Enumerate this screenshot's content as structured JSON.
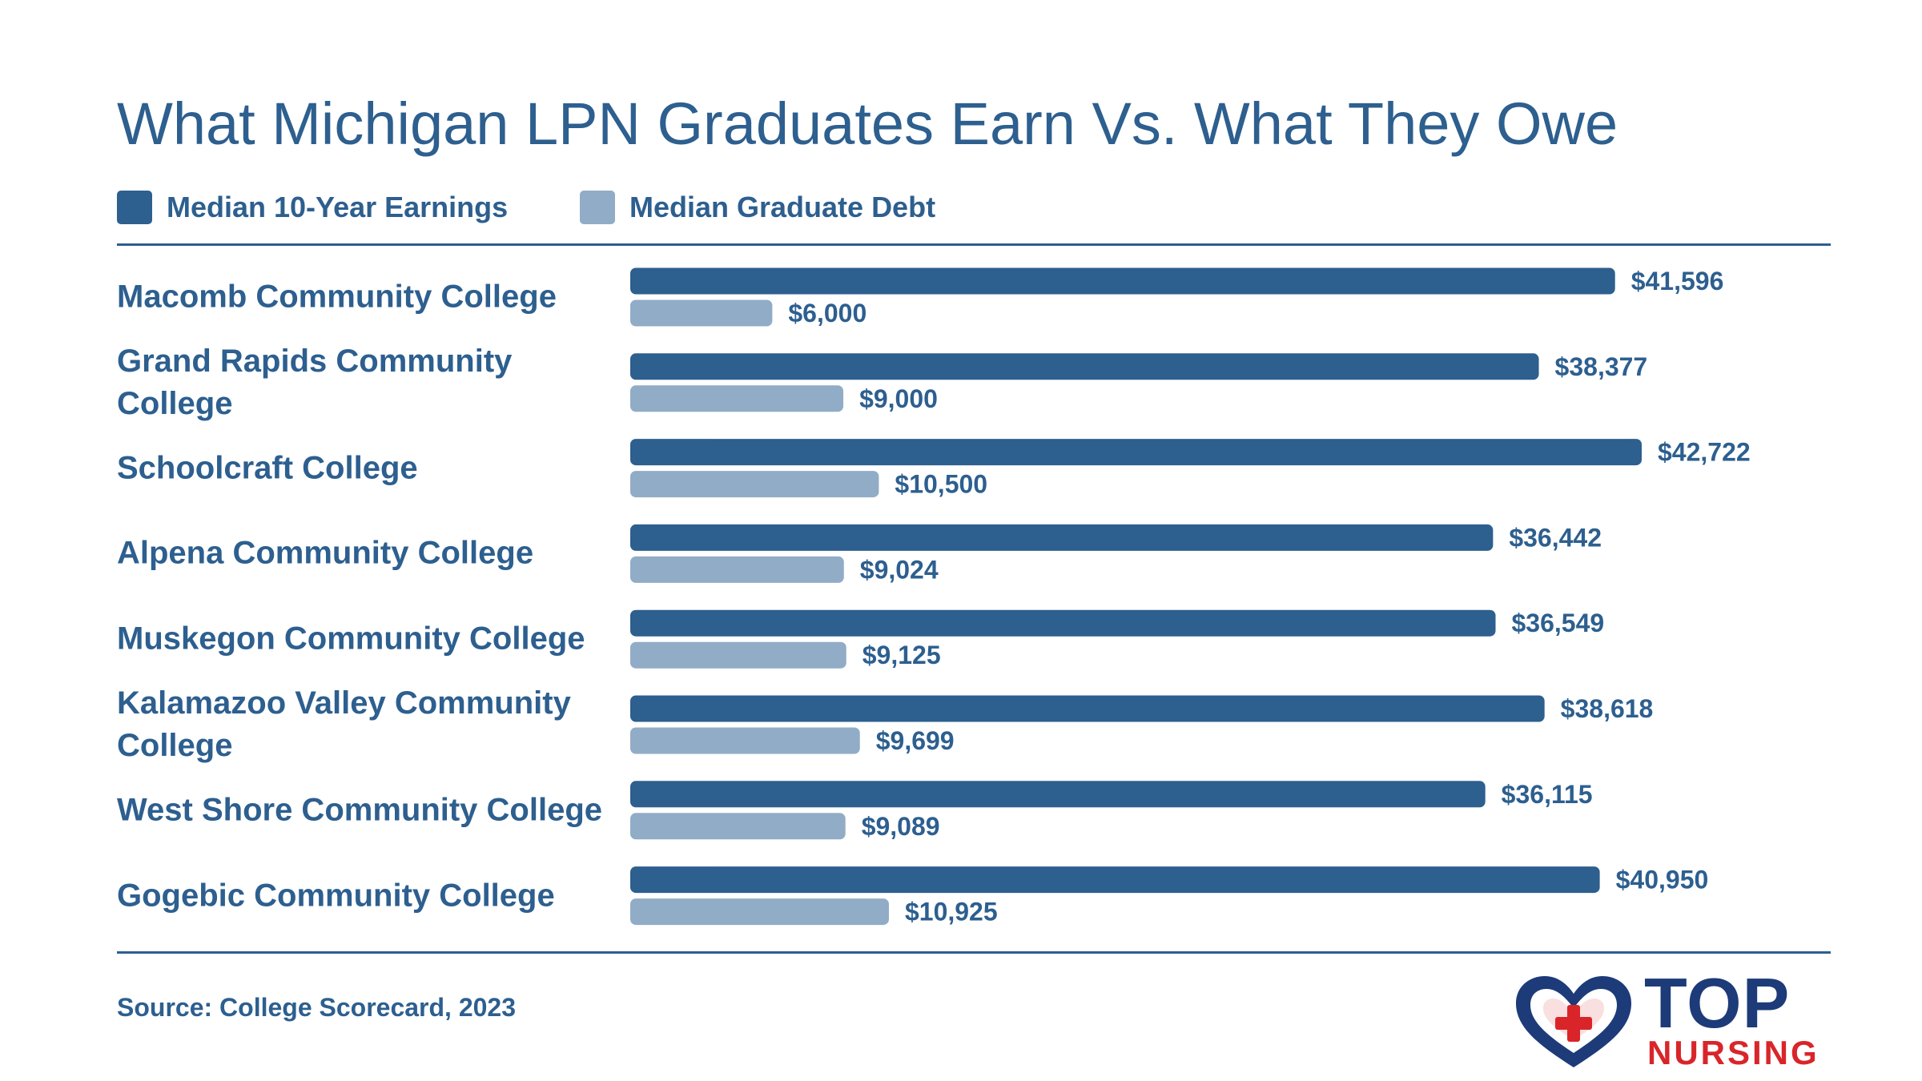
{
  "header": {
    "title": "What Michigan LPN Graduates Earn Vs. What They Owe"
  },
  "legend": {
    "items": [
      {
        "label": "Median 10-Year Earnings",
        "color": "#2d5f8f"
      },
      {
        "label": "Median Graduate Debt",
        "color": "#91acc6"
      }
    ]
  },
  "chart_data": {
    "type": "bar",
    "orientation": "horizontal",
    "categories": [
      "Macomb Community College",
      "Grand Rapids Community College",
      "Schoolcraft College",
      "Alpena Community College",
      "Muskegon Community College",
      "Kalamazoo Valley Community College",
      "West Shore Community College",
      "Gogebic Community College"
    ],
    "series": [
      {
        "name": "Median 10-Year Earnings",
        "color": "#2d5f8f",
        "values": [
          41596,
          38377,
          42722,
          36442,
          36549,
          38618,
          36115,
          40950
        ],
        "labels": [
          "$41,596",
          "$38,377",
          "$42,722",
          "$36,442",
          "$36,549",
          "$38,618",
          "$36,115",
          "$40,950"
        ]
      },
      {
        "name": "Median Graduate Debt",
        "color": "#91acc6",
        "values": [
          6000,
          9000,
          10500,
          9024,
          9125,
          9699,
          9089,
          10925
        ],
        "labels": [
          "$6,000",
          "$9,000",
          "$10,500",
          "$9,024",
          "$9,125",
          "$9,699",
          "$9,089",
          "$10,925"
        ]
      }
    ],
    "grid": false,
    "legend_position": "top-left"
  },
  "footer": {
    "source": "Source: College Scorecard, 2023"
  },
  "logo": {
    "line1": "TOP",
    "line2": "NURSING",
    "icon": "heart-cross-icon",
    "colors": {
      "navy": "#1d3b78",
      "red": "#d9252a"
    }
  }
}
